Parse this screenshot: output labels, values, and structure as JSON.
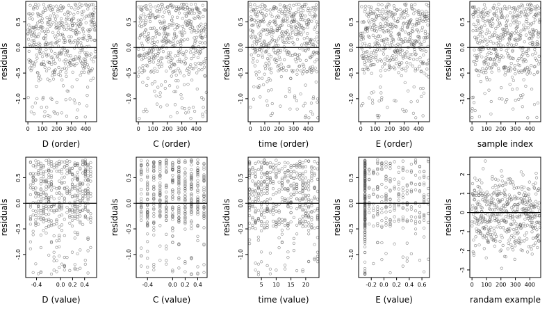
{
  "chart_data": [
    {
      "type": "scatter",
      "xlabel": "D (order)",
      "ylabel": "residuals",
      "xticks": [
        0,
        100,
        200,
        300,
        400
      ],
      "xlim": [
        -15,
        475
      ],
      "yticks": [
        0.5,
        0.0,
        -0.5,
        -1.0
      ],
      "ylim": [
        -1.45,
        0.9
      ],
      "reference_line_y": 0,
      "n_points": 470,
      "x_kind": "index",
      "pattern": "ord",
      "seed": 11
    },
    {
      "type": "scatter",
      "xlabel": "C (order)",
      "ylabel": "residuals",
      "xticks": [
        0,
        100,
        200,
        300,
        400
      ],
      "xlim": [
        -15,
        475
      ],
      "yticks": [
        0.5,
        0.0,
        -0.5,
        -1.0
      ],
      "ylim": [
        -1.45,
        0.9
      ],
      "reference_line_y": 0,
      "n_points": 470,
      "x_kind": "index",
      "pattern": "ord",
      "seed": 23
    },
    {
      "type": "scatter",
      "xlabel": "time (order)",
      "ylabel": "residuals",
      "xticks": [
        0,
        100,
        200,
        300,
        400
      ],
      "xlim": [
        -15,
        475
      ],
      "yticks": [
        0.5,
        0.0,
        -0.5,
        -1.0
      ],
      "ylim": [
        -1.45,
        0.9
      ],
      "reference_line_y": 0,
      "n_points": 470,
      "x_kind": "index",
      "pattern": "ord",
      "seed": 37
    },
    {
      "type": "scatter",
      "xlabel": "E (order)",
      "ylabel": "residuals",
      "xticks": [
        0,
        100,
        200,
        300,
        400
      ],
      "xlim": [
        -15,
        475
      ],
      "yticks": [
        0.5,
        0.0,
        -0.5,
        -1.0
      ],
      "ylim": [
        -1.45,
        0.9
      ],
      "reference_line_y": 0,
      "n_points": 470,
      "x_kind": "index",
      "pattern": "ord",
      "seed": 41
    },
    {
      "type": "scatter",
      "xlabel": "sample index",
      "ylabel": "residuals",
      "xticks": [
        0,
        100,
        200,
        300,
        400
      ],
      "xlim": [
        -15,
        475
      ],
      "yticks": [
        0.5,
        0.0,
        -0.5,
        -1.0
      ],
      "ylim": [
        -1.45,
        0.9
      ],
      "reference_line_y": 0,
      "n_points": 470,
      "x_kind": "index",
      "pattern": "ord",
      "seed": 53
    },
    {
      "type": "scatter",
      "xlabel": "D (value)",
      "ylabel": "residuals",
      "xticks": [
        -0.4,
        0.0,
        0.2,
        0.4
      ],
      "xtick_labels": [
        "-0.4",
        "0.0",
        "0.2",
        "0.4"
      ],
      "xlim": [
        -0.58,
        0.6
      ],
      "yticks": [
        0.5,
        0.0,
        -0.5,
        -1.0
      ],
      "ylim": [
        -1.45,
        0.9
      ],
      "reference_line_y": 0,
      "n_points": 470,
      "x_kind": "value",
      "x_range": [
        -0.5,
        0.5
      ],
      "x_levels": 24,
      "pattern": "val",
      "seed": 61
    },
    {
      "type": "scatter",
      "xlabel": "C (value)",
      "ylabel": "residuals",
      "xticks": [
        -0.4,
        0.0,
        0.2,
        0.4
      ],
      "xtick_labels": [
        "-0.4",
        "0.0",
        "0.2",
        "0.4"
      ],
      "xlim": [
        -0.58,
        0.55
      ],
      "yticks": [
        0.5,
        0.0,
        -0.5,
        -1.0
      ],
      "ylim": [
        -1.45,
        0.9
      ],
      "reference_line_y": 0,
      "n_points": 470,
      "x_kind": "value",
      "x_range": [
        -0.5,
        0.5
      ],
      "x_levels": 11,
      "pattern": "val",
      "seed": 73
    },
    {
      "type": "scatter",
      "xlabel": "time (value)",
      "ylabel": "residuals",
      "xticks": [
        5,
        10,
        15,
        20
      ],
      "xlim": [
        0.5,
        24.5
      ],
      "yticks": [
        0.5,
        0.0,
        -0.5,
        -1.0
      ],
      "ylim": [
        -1.45,
        0.9
      ],
      "reference_line_y": 0,
      "n_points": 470,
      "x_kind": "value",
      "x_range": [
        1,
        24
      ],
      "x_levels": 24,
      "pattern": "val",
      "seed": 89
    },
    {
      "type": "scatter",
      "xlabel": "E (value)",
      "ylabel": "residuals",
      "xticks": [
        -0.2,
        0.0,
        0.2,
        0.4,
        0.6
      ],
      "xtick_labels": [
        "-0.2",
        "0.0",
        "0.2",
        "0.4",
        "0.6"
      ],
      "xlim": [
        -0.4,
        0.72
      ],
      "yticks": [
        0.5,
        0.0,
        -0.5,
        -1.0
      ],
      "ylim": [
        -1.45,
        0.9
      ],
      "reference_line_y": 0,
      "n_points": 470,
      "x_kind": "skewed",
      "x_range": [
        -0.3,
        0.7
      ],
      "x_levels": 16,
      "pattern": "val",
      "seed": 97
    },
    {
      "type": "scatter",
      "xlabel": "randam example",
      "ylabel": "residuals",
      "xticks": [
        0,
        100,
        200,
        300,
        400
      ],
      "xlim": [
        -15,
        475
      ],
      "yticks": [
        2,
        1,
        0,
        -1,
        -2,
        -3
      ],
      "ylim": [
        -3.4,
        2.9
      ],
      "reference_line_y": 0,
      "n_points": 470,
      "x_kind": "index",
      "pattern": "normal",
      "seed": 101
    }
  ]
}
